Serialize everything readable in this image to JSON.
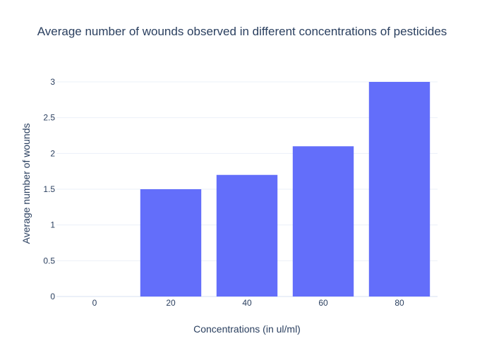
{
  "chart_data": {
    "type": "bar",
    "title": "Average number of wounds observed in different concentrations of pesticides",
    "xlabel": "Concentrations (in ul/ml)",
    "ylabel": "Average number of wounds",
    "categories": [
      "0",
      "20",
      "40",
      "60",
      "80"
    ],
    "values": [
      0,
      1.5,
      1.7,
      2.1,
      3
    ],
    "ylim": [
      0,
      3
    ],
    "yticks": [
      "0",
      "0.5",
      "1",
      "1.5",
      "2",
      "2.5",
      "3"
    ],
    "grid": true,
    "bar_color": "#636efa",
    "text_color": "#2a3f5f",
    "grid_color": "#ebf0f8"
  }
}
